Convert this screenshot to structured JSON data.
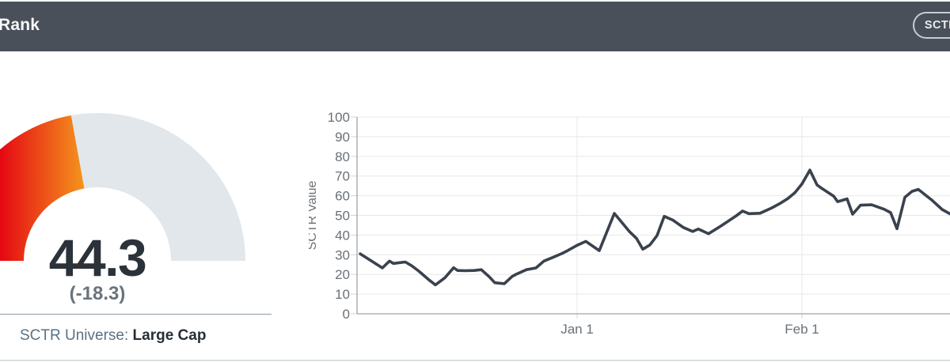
{
  "header": {
    "title": "Rank",
    "button_label": "SCTR"
  },
  "gauge": {
    "value_label": "44.3",
    "value_number": 44.3,
    "max": 100,
    "change_label": "(-18.3)",
    "universe_label": "SCTR Universe:",
    "universe_value": "Large Cap",
    "colors": {
      "fill_gradient_start": "#e50813",
      "fill_gradient_end": "#f59c1e",
      "track": "#e2e7ec",
      "value_text": "#2b323a",
      "change_text": "#6a737c"
    }
  },
  "chart_data": {
    "type": "line",
    "title": "",
    "ylabel": "SCTR Value",
    "ylim": [
      0,
      100
    ],
    "ytick_step": 10,
    "yticks": [
      0,
      10,
      20,
      30,
      40,
      50,
      60,
      70,
      80,
      90,
      100
    ],
    "xticks": [
      {
        "label": "Jan 1",
        "x": 278
      },
      {
        "label": "Feb 1",
        "x": 562
      }
    ],
    "grid": true,
    "legend": "none",
    "line_color": "#39424d",
    "axis_color": "#9ea5ab",
    "grid_color": "#e7e8ea",
    "tick_color": "#d2d6d9",
    "label_color": "#6a7177",
    "points": [
      [
        4,
        30.5
      ],
      [
        32,
        23.3
      ],
      [
        41,
        26.8
      ],
      [
        46,
        25.6
      ],
      [
        61,
        26.3
      ],
      [
        69,
        24.4
      ],
      [
        78,
        21.7
      ],
      [
        90,
        17.5
      ],
      [
        99,
        14.7
      ],
      [
        111,
        18.3
      ],
      [
        122,
        23.4
      ],
      [
        127,
        22.0
      ],
      [
        137,
        21.9
      ],
      [
        148,
        22.0
      ],
      [
        157,
        22.4
      ],
      [
        167,
        18.8
      ],
      [
        174,
        15.8
      ],
      [
        186,
        15.3
      ],
      [
        196,
        19.0
      ],
      [
        201,
        20.1
      ],
      [
        214,
        22.4
      ],
      [
        226,
        23.3
      ],
      [
        236,
        26.8
      ],
      [
        247,
        28.6
      ],
      [
        259,
        30.7
      ],
      [
        266,
        32.1
      ],
      [
        278,
        34.8
      ],
      [
        289,
        36.8
      ],
      [
        306,
        32.1
      ],
      [
        325,
        51.0
      ],
      [
        344,
        41.8
      ],
      [
        353,
        38.3
      ],
      [
        361,
        32.8
      ],
      [
        370,
        35.0
      ],
      [
        379,
        39.8
      ],
      [
        388,
        49.5
      ],
      [
        399,
        47.6
      ],
      [
        412,
        43.9
      ],
      [
        424,
        41.8
      ],
      [
        431,
        43.1
      ],
      [
        444,
        40.7
      ],
      [
        459,
        44.4
      ],
      [
        479,
        49.8
      ],
      [
        487,
        52.2
      ],
      [
        495,
        50.9
      ],
      [
        509,
        51.1
      ],
      [
        524,
        53.8
      ],
      [
        534,
        56.0
      ],
      [
        544,
        58.5
      ],
      [
        553,
        61.5
      ],
      [
        562,
        66.0
      ],
      [
        572,
        73.0
      ],
      [
        581,
        65.5
      ],
      [
        586,
        64.0
      ],
      [
        602,
        59.8
      ],
      [
        607,
        57.0
      ],
      [
        614,
        57.8
      ],
      [
        619,
        58.4
      ],
      [
        626,
        50.6
      ],
      [
        636,
        55.2
      ],
      [
        650,
        55.4
      ],
      [
        666,
        53.1
      ],
      [
        674,
        51.4
      ],
      [
        682,
        43.2
      ],
      [
        692,
        59.2
      ],
      [
        701,
        62.2
      ],
      [
        709,
        63.2
      ],
      [
        726,
        57.8
      ],
      [
        739,
        53.0
      ],
      [
        749,
        50.8
      ]
    ]
  }
}
